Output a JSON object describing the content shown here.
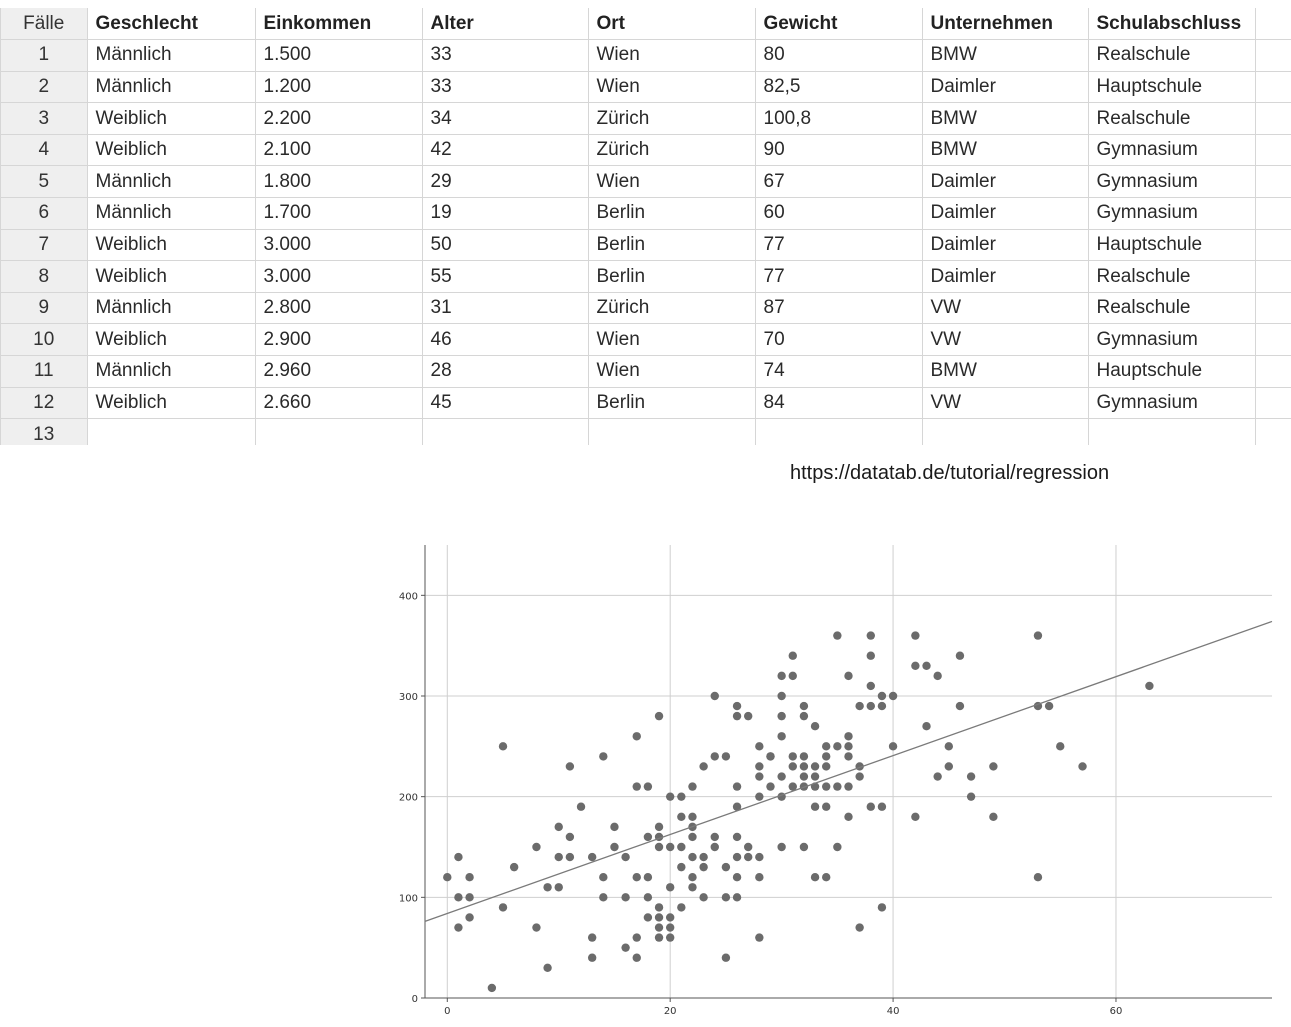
{
  "table": {
    "columns": [
      "Fälle",
      "Geschlecht",
      "Einkommen",
      "Alter",
      "Ort",
      "Gewicht",
      "Unternehmen",
      "Schulabschluss",
      ""
    ],
    "rows": [
      [
        "1",
        "Männlich",
        "1.500",
        "33",
        "Wien",
        "80",
        "BMW",
        "Realschule"
      ],
      [
        "2",
        "Männlich",
        "1.200",
        "33",
        "Wien",
        "82,5",
        "Daimler",
        "Hauptschule"
      ],
      [
        "3",
        "Weiblich",
        "2.200",
        "34",
        "Zürich",
        "100,8",
        "BMW",
        "Realschule"
      ],
      [
        "4",
        "Weiblich",
        "2.100",
        "42",
        "Zürich",
        "90",
        "BMW",
        "Gymnasium"
      ],
      [
        "5",
        "Männlich",
        "1.800",
        "29",
        "Wien",
        "67",
        "Daimler",
        "Gymnasium"
      ],
      [
        "6",
        "Männlich",
        "1.700",
        "19",
        "Berlin",
        "60",
        "Daimler",
        "Gymnasium"
      ],
      [
        "7",
        "Weiblich",
        "3.000",
        "50",
        "Berlin",
        "77",
        "Daimler",
        "Hauptschule"
      ],
      [
        "8",
        "Weiblich",
        "3.000",
        "55",
        "Berlin",
        "77",
        "Daimler",
        "Realschule"
      ],
      [
        "9",
        "Männlich",
        "2.800",
        "31",
        "Zürich",
        "87",
        "VW",
        "Realschule"
      ],
      [
        "10",
        "Weiblich",
        "2.900",
        "46",
        "Wien",
        "70",
        "VW",
        "Gymnasium"
      ],
      [
        "11",
        "Männlich",
        "2.960",
        "28",
        "Wien",
        "74",
        "BMW",
        "Hauptschule"
      ],
      [
        "12",
        "Weiblich",
        "2.660",
        "45",
        "Berlin",
        "84",
        "VW",
        "Gymnasium"
      ],
      [
        "13",
        "",
        "",
        "",
        "",
        "",
        "",
        ""
      ]
    ]
  },
  "source_link": "https://datatab.de/tutorial/regression",
  "chart_data": {
    "type": "scatter",
    "title": "",
    "xlabel": "",
    "ylabel": "",
    "xlim": [
      -2,
      74
    ],
    "ylim": [
      0,
      450
    ],
    "xticks": [
      0,
      20,
      40,
      60
    ],
    "yticks": [
      0,
      100,
      200,
      300,
      400
    ],
    "grid": true,
    "point_color": "#6b6b6b",
    "regression_line": {
      "intercept": 84,
      "slope": 3.92,
      "color": "#7a7a7a"
    },
    "points": [
      [
        0,
        120
      ],
      [
        1,
        140
      ],
      [
        1,
        100
      ],
      [
        1,
        70
      ],
      [
        2,
        120
      ],
      [
        2,
        100
      ],
      [
        2,
        80
      ],
      [
        4,
        10
      ],
      [
        5,
        250
      ],
      [
        5,
        90
      ],
      [
        6,
        130
      ],
      [
        8,
        150
      ],
      [
        8,
        70
      ],
      [
        9,
        110
      ],
      [
        9,
        30
      ],
      [
        10,
        170
      ],
      [
        10,
        140
      ],
      [
        10,
        110
      ],
      [
        11,
        230
      ],
      [
        11,
        160
      ],
      [
        11,
        140
      ],
      [
        12,
        190
      ],
      [
        13,
        140
      ],
      [
        13,
        60
      ],
      [
        13,
        40
      ],
      [
        14,
        240
      ],
      [
        14,
        120
      ],
      [
        14,
        100
      ],
      [
        15,
        170
      ],
      [
        15,
        150
      ],
      [
        16,
        140
      ],
      [
        16,
        100
      ],
      [
        16,
        50
      ],
      [
        17,
        260
      ],
      [
        17,
        210
      ],
      [
        17,
        120
      ],
      [
        17,
        60
      ],
      [
        17,
        40
      ],
      [
        18,
        210
      ],
      [
        18,
        160
      ],
      [
        18,
        120
      ],
      [
        18,
        100
      ],
      [
        18,
        80
      ],
      [
        19,
        280
      ],
      [
        19,
        170
      ],
      [
        19,
        160
      ],
      [
        19,
        150
      ],
      [
        19,
        90
      ],
      [
        19,
        80
      ],
      [
        19,
        70
      ],
      [
        19,
        60
      ],
      [
        20,
        200
      ],
      [
        20,
        150
      ],
      [
        20,
        110
      ],
      [
        20,
        80
      ],
      [
        20,
        70
      ],
      [
        20,
        60
      ],
      [
        21,
        200
      ],
      [
        21,
        180
      ],
      [
        21,
        150
      ],
      [
        21,
        130
      ],
      [
        21,
        90
      ],
      [
        22,
        210
      ],
      [
        22,
        180
      ],
      [
        22,
        170
      ],
      [
        22,
        160
      ],
      [
        22,
        140
      ],
      [
        22,
        120
      ],
      [
        22,
        110
      ],
      [
        23,
        230
      ],
      [
        23,
        140
      ],
      [
        23,
        130
      ],
      [
        23,
        100
      ],
      [
        24,
        300
      ],
      [
        24,
        240
      ],
      [
        24,
        160
      ],
      [
        24,
        150
      ],
      [
        25,
        240
      ],
      [
        25,
        130
      ],
      [
        25,
        100
      ],
      [
        25,
        40
      ],
      [
        26,
        290
      ],
      [
        26,
        280
      ],
      [
        26,
        210
      ],
      [
        26,
        190
      ],
      [
        26,
        160
      ],
      [
        26,
        140
      ],
      [
        26,
        120
      ],
      [
        26,
        100
      ],
      [
        27,
        280
      ],
      [
        27,
        150
      ],
      [
        27,
        140
      ],
      [
        28,
        250
      ],
      [
        28,
        230
      ],
      [
        28,
        220
      ],
      [
        28,
        200
      ],
      [
        28,
        140
      ],
      [
        28,
        120
      ],
      [
        28,
        60
      ],
      [
        29,
        240
      ],
      [
        29,
        240
      ],
      [
        29,
        210
      ],
      [
        30,
        320
      ],
      [
        30,
        300
      ],
      [
        30,
        280
      ],
      [
        30,
        260
      ],
      [
        30,
        220
      ],
      [
        30,
        200
      ],
      [
        30,
        150
      ],
      [
        31,
        340
      ],
      [
        31,
        320
      ],
      [
        31,
        240
      ],
      [
        31,
        230
      ],
      [
        31,
        210
      ],
      [
        32,
        290
      ],
      [
        32,
        280
      ],
      [
        32,
        240
      ],
      [
        32,
        230
      ],
      [
        32,
        220
      ],
      [
        32,
        210
      ],
      [
        32,
        150
      ],
      [
        33,
        270
      ],
      [
        33,
        230
      ],
      [
        33,
        220
      ],
      [
        33,
        210
      ],
      [
        33,
        190
      ],
      [
        33,
        120
      ],
      [
        34,
        250
      ],
      [
        34,
        240
      ],
      [
        34,
        230
      ],
      [
        34,
        210
      ],
      [
        34,
        190
      ],
      [
        34,
        120
      ],
      [
        35,
        360
      ],
      [
        35,
        250
      ],
      [
        35,
        210
      ],
      [
        35,
        150
      ],
      [
        36,
        320
      ],
      [
        36,
        260
      ],
      [
        36,
        250
      ],
      [
        36,
        240
      ],
      [
        36,
        210
      ],
      [
        36,
        180
      ],
      [
        37,
        290
      ],
      [
        37,
        230
      ],
      [
        37,
        220
      ],
      [
        37,
        70
      ],
      [
        38,
        360
      ],
      [
        38,
        340
      ],
      [
        38,
        310
      ],
      [
        38,
        290
      ],
      [
        38,
        190
      ],
      [
        39,
        300
      ],
      [
        39,
        290
      ],
      [
        39,
        190
      ],
      [
        39,
        90
      ],
      [
        40,
        300
      ],
      [
        40,
        250
      ],
      [
        42,
        360
      ],
      [
        42,
        330
      ],
      [
        42,
        180
      ],
      [
        43,
        330
      ],
      [
        43,
        270
      ],
      [
        44,
        320
      ],
      [
        44,
        220
      ],
      [
        45,
        250
      ],
      [
        45,
        230
      ],
      [
        46,
        340
      ],
      [
        46,
        290
      ],
      [
        47,
        220
      ],
      [
        47,
        200
      ],
      [
        49,
        230
      ],
      [
        49,
        180
      ],
      [
        53,
        360
      ],
      [
        53,
        290
      ],
      [
        53,
        120
      ],
      [
        54,
        290
      ],
      [
        55,
        250
      ],
      [
        57,
        230
      ],
      [
        63,
        310
      ]
    ]
  }
}
